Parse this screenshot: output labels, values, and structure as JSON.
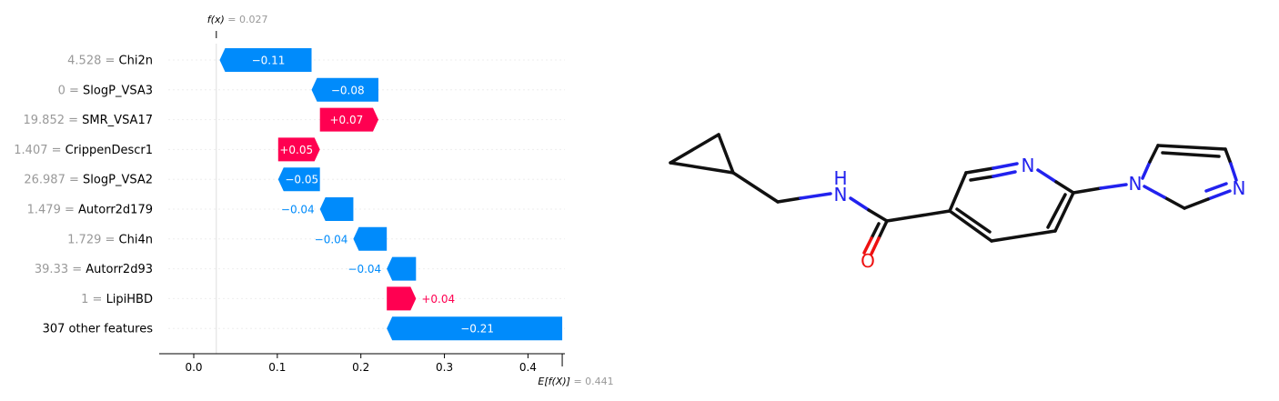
{
  "chart_data": {
    "type": "waterfall",
    "fx_label": "f(x)",
    "fx_value": "0.027",
    "fx": 0.027,
    "base_label": "E[f(X)]",
    "base_value_text": "0.441",
    "base_value": 0.441,
    "xlim": [
      -0.04,
      0.44
    ],
    "xticks": [
      0.0,
      0.1,
      0.2,
      0.3,
      0.4
    ],
    "xtick_labels": [
      "0.0",
      "0.1",
      "0.2",
      "0.3",
      "0.4"
    ],
    "features": [
      {
        "value": "4.528",
        "name": "Chi2n",
        "contribution": -0.11,
        "label": "−0.11"
      },
      {
        "value": "0",
        "name": "SlogP_VSA3",
        "contribution": -0.08,
        "label": "−0.08"
      },
      {
        "value": "19.852",
        "name": "SMR_VSA17",
        "contribution": 0.07,
        "label": "+0.07"
      },
      {
        "value": "1.407",
        "name": "CrippenDescr1",
        "contribution": 0.05,
        "label": "+0.05"
      },
      {
        "value": "26.987",
        "name": "SlogP_VSA2",
        "contribution": -0.05,
        "label": "−0.05"
      },
      {
        "value": "1.479",
        "name": "Autorr2d179",
        "contribution": -0.04,
        "label": "−0.04"
      },
      {
        "value": "1.729",
        "name": "Chi4n",
        "contribution": -0.04,
        "label": "−0.04"
      },
      {
        "value": "39.33",
        "name": "Autorr2d93",
        "contribution": -0.035,
        "label": "−0.04"
      },
      {
        "value": "1",
        "name": "LipiHBD",
        "contribution": 0.035,
        "label": "+0.04"
      },
      {
        "value": "",
        "name": "307 other features",
        "contribution": -0.21,
        "label": "−0.21"
      }
    ],
    "colors": {
      "positive": "#ff0051",
      "negative": "#008bfb"
    }
  },
  "molecule": {
    "atom_labels": [
      "N",
      "N",
      "N",
      "H",
      "O"
    ],
    "colors": {
      "nitrogen": "#2222ee",
      "oxygen": "#ee1111",
      "bond": "#111111"
    }
  }
}
